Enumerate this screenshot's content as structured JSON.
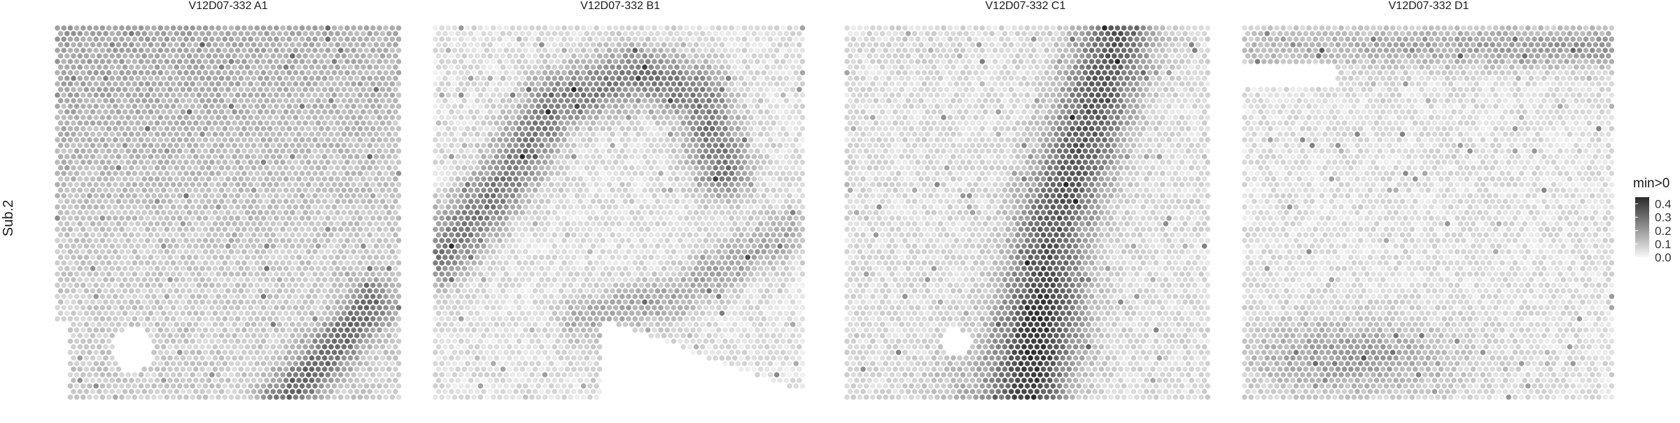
{
  "chart_data": {
    "type": "heatmap",
    "y_strip_label": "Sub.2",
    "panels": [
      {
        "title": "V12D07-332  A1"
      },
      {
        "title": "V12D07-332  B1"
      },
      {
        "title": "V12D07-332  C1"
      },
      {
        "title": "V12D07-332  D1"
      }
    ],
    "legend": {
      "title": "min>0",
      "ticks": [
        "0.4",
        "0.3",
        "0.2",
        "0.1",
        "0.0"
      ],
      "range": [
        0,
        0.45
      ],
      "position": "right",
      "color_low": "#f2f2f2",
      "color_high": "#2b2b2b"
    },
    "grid": false
  }
}
